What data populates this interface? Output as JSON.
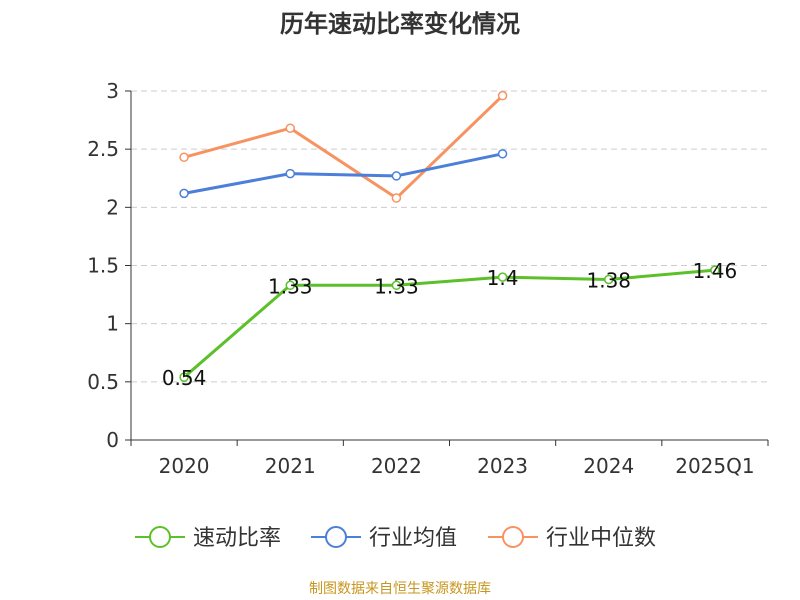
{
  "chart_data": {
    "type": "line",
    "title": "历年速动比率变化情况",
    "categories": [
      "2020",
      "2021",
      "2022",
      "2023",
      "2024",
      "2025Q1"
    ],
    "y_ticks": [
      "0",
      "0.5",
      "1",
      "1.5",
      "2",
      "2.5",
      "3"
    ],
    "ylim": [
      0,
      3
    ],
    "grid": "horizontal-dashed",
    "legend_position": "bottom",
    "series": [
      {
        "name": "速动比率",
        "color": "#5cc02a",
        "values": [
          0.54,
          1.33,
          1.33,
          1.4,
          1.38,
          1.46
        ],
        "labels": [
          "0.54",
          "1.33",
          "1.33",
          "1.4",
          "1.38",
          "1.46"
        ]
      },
      {
        "name": "行业均值",
        "color": "#4b7fd9",
        "values": [
          2.12,
          2.29,
          2.27,
          2.46,
          null,
          null
        ]
      },
      {
        "name": "行业中位数",
        "color": "#f79361",
        "values": [
          2.43,
          2.68,
          2.08,
          2.96,
          null,
          null
        ]
      }
    ]
  },
  "source": "制图数据来自恒生聚源数据库"
}
